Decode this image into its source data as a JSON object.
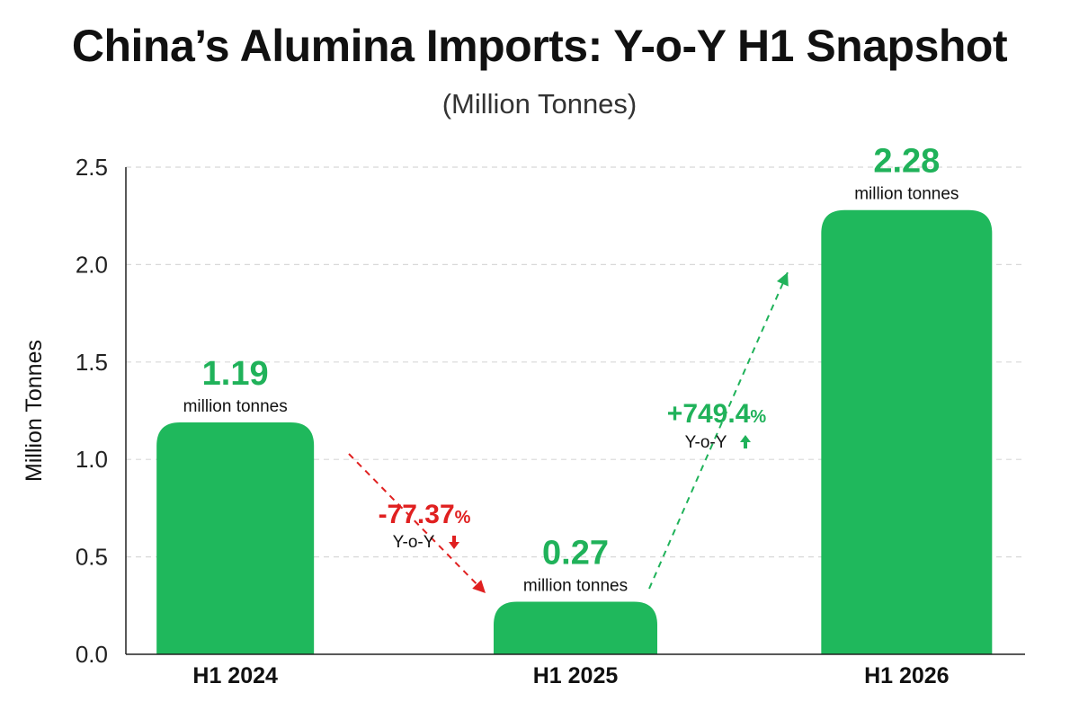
{
  "chart_data": {
    "type": "bar",
    "title": "China’s Alumina Imports: Y-o-Y H1 Snapshot",
    "subtitle": "(Million Tonnes)",
    "ylabel": "Million Tonnes",
    "xlabel": "",
    "ylim": [
      0,
      2.5
    ],
    "yticks": [
      "0.0",
      "0.5",
      "1.0",
      "1.5",
      "2.0",
      "2.5"
    ],
    "grid": true,
    "categories": [
      "H1 2024",
      "H1 2025",
      "H1 2026"
    ],
    "values": [
      1.19,
      0.27,
      2.28
    ],
    "value_labels": [
      "1.19",
      "0.27",
      "2.28"
    ],
    "unit_label": "million tonnes",
    "changes": [
      {
        "from": "H1 2024",
        "to": "H1 2025",
        "value": "-77.37",
        "sign": "%",
        "label": "Y-o-Y",
        "direction": "down",
        "color": "#e02020"
      },
      {
        "from": "H1 2025",
        "to": "H1 2026",
        "value": "+749.4",
        "sign": "%",
        "label": "Y-o-Y",
        "direction": "up",
        "color": "#20b25a"
      }
    ],
    "colors": {
      "bar": "#1fb85c",
      "up": "#20b25a",
      "down": "#e02020",
      "grid": "#d8d8d8"
    }
  }
}
